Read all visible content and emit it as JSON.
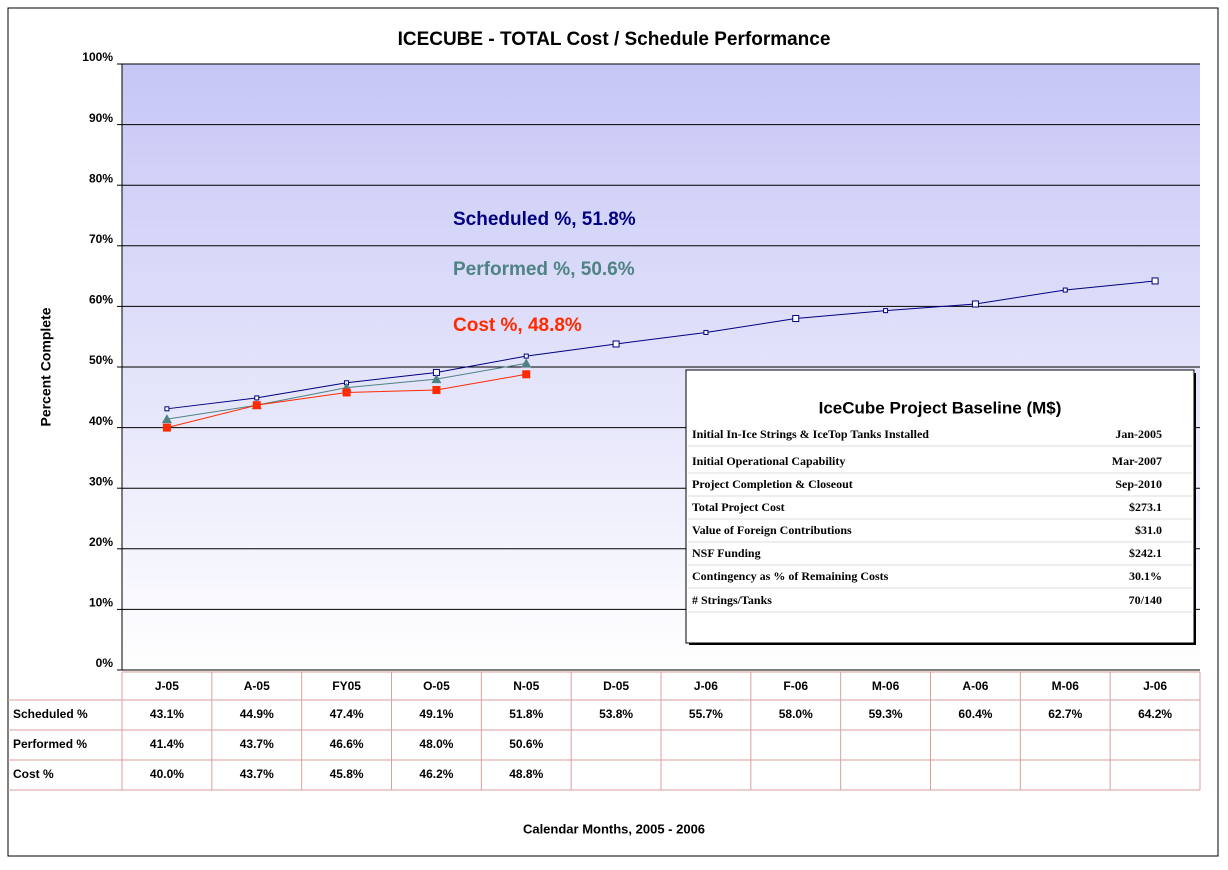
{
  "chart_data": {
    "type": "line",
    "title": "ICECUBE - TOTAL Cost / Schedule Performance",
    "ylabel": "Percent Complete",
    "xlabel": "Calendar Months,  2005 - 2006",
    "categories": [
      "J-05",
      "A-05",
      "FY05",
      "O-05",
      "N-05",
      "D-05",
      "J-06",
      "F-06",
      "M-06",
      "A-06",
      "M-06",
      "J-06"
    ],
    "series": [
      {
        "name": "Scheduled %",
        "color": "#000080",
        "marker": "open-square",
        "values": [
          43.1,
          44.9,
          47.4,
          49.1,
          51.8,
          53.8,
          55.7,
          58.0,
          59.3,
          60.4,
          62.7,
          64.2
        ],
        "value_labels": [
          "43.1%",
          "44.9%",
          "47.4%",
          "49.1%",
          "51.8%",
          "53.8%",
          "55.7%",
          "58.0%",
          "59.3%",
          "60.4%",
          "62.7%",
          "64.2%"
        ]
      },
      {
        "name": "Performed %",
        "color": "#4f8383",
        "marker": "triangle",
        "values": [
          41.4,
          43.7,
          46.6,
          48.0,
          50.6,
          null,
          null,
          null,
          null,
          null,
          null,
          null
        ],
        "value_labels": [
          "41.4%",
          "43.7%",
          "46.6%",
          "48.0%",
          "50.6%",
          null,
          null,
          null,
          null,
          null,
          null,
          null
        ]
      },
      {
        "name": "Cost %",
        "color": "#ff2a00",
        "marker": "square",
        "values": [
          40.0,
          43.7,
          45.8,
          46.2,
          48.8,
          null,
          null,
          null,
          null,
          null,
          null,
          null
        ],
        "value_labels": [
          "40.0%",
          "43.7%",
          "45.8%",
          "46.2%",
          "48.8%",
          null,
          null,
          null,
          null,
          null,
          null,
          null
        ]
      }
    ],
    "ylim": [
      0,
      100
    ],
    "yticks": [
      {
        "value": 0,
        "label": "0%"
      },
      {
        "value": 10,
        "label": "10%"
      },
      {
        "value": 20,
        "label": "20%"
      },
      {
        "value": 30,
        "label": "30%"
      },
      {
        "value": 40,
        "label": "40%"
      },
      {
        "value": 50,
        "label": "50%"
      },
      {
        "value": 60,
        "label": "60%"
      },
      {
        "value": 70,
        "label": "70%"
      },
      {
        "value": 80,
        "label": "80%"
      },
      {
        "value": 90,
        "label": "90%"
      },
      {
        "value": 100,
        "label": "100%"
      }
    ],
    "grid": true,
    "annotations": [
      {
        "text": "Scheduled %, 51.8%",
        "color": "#000080"
      },
      {
        "text": "Performed %, 50.6%",
        "color": "#4f8383"
      },
      {
        "text": "Cost %, 48.8%",
        "color": "#ff2a00"
      }
    ],
    "baseline": {
      "title": "IceCube Project Baseline (M$)",
      "rows": [
        {
          "label": "Initial In-Ice Strings & IceTop Tanks Installed",
          "value": "Jan-2005"
        },
        {
          "label": "Initial Operational Capability",
          "value": "Mar-2007"
        },
        {
          "label": "Project Completion & Closeout",
          "value": "Sep-2010"
        },
        {
          "label": "Total Project Cost",
          "value": "$273.1"
        },
        {
          "label": "Value of Foreign Contributions",
          "value": "$31.0"
        },
        {
          "label": "NSF Funding",
          "value": "$242.1"
        },
        {
          "label": "Contingency as % of Remaining Costs",
          "value": "30.1%"
        },
        {
          "label": " # Strings/Tanks",
          "value": "70/140"
        }
      ]
    }
  }
}
